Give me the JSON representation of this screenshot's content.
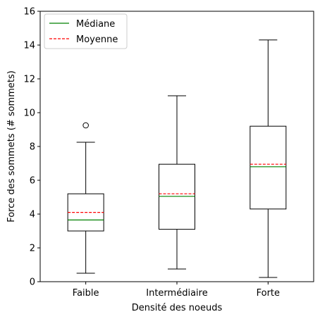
{
  "chart_data": {
    "type": "box",
    "title": "",
    "xlabel": "Densité des noeuds",
    "ylabel": "Force des sommets (# sommets)",
    "ylim": [
      0,
      16
    ],
    "yticks": [
      0,
      2,
      4,
      6,
      8,
      10,
      12,
      14,
      16
    ],
    "categories": [
      "Faible",
      "Intermédiaire",
      "Forte"
    ],
    "boxes": [
      {
        "category": "Faible",
        "whisker_low": 0.5,
        "q1": 3.0,
        "median": 3.65,
        "mean": 4.1,
        "q3": 5.2,
        "whisker_high": 8.25,
        "outliers": [
          9.25
        ]
      },
      {
        "category": "Intermédiaire",
        "whisker_low": 0.75,
        "q1": 3.1,
        "median": 5.05,
        "mean": 5.2,
        "q3": 6.95,
        "whisker_high": 11.0,
        "outliers": []
      },
      {
        "category": "Forte",
        "whisker_low": 0.25,
        "q1": 4.3,
        "median": 6.8,
        "mean": 6.95,
        "q3": 9.2,
        "whisker_high": 14.3,
        "outliers": []
      }
    ],
    "legend": {
      "position": "top-left",
      "entries": [
        {
          "label": "Médiane",
          "color": "#008000",
          "style": "solid"
        },
        {
          "label": "Moyenne",
          "color": "#ff0000",
          "style": "dashed"
        }
      ]
    },
    "grid": false,
    "colors": {
      "box": "#000000",
      "median": "#008000",
      "mean": "#ff0000"
    }
  }
}
